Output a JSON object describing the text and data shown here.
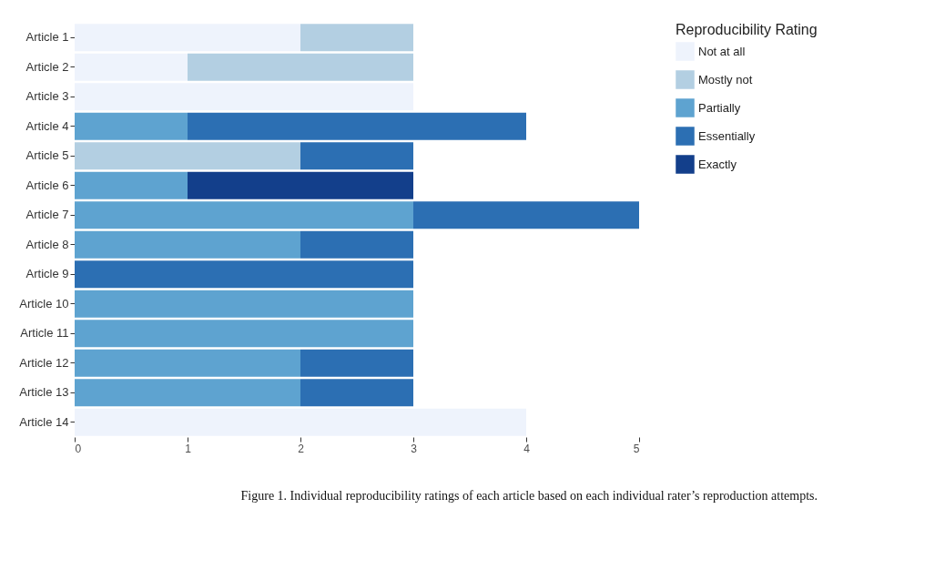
{
  "chart_data": {
    "type": "bar",
    "orientation": "horizontal",
    "stacked": true,
    "categories": [
      "Article 1",
      "Article 2",
      "Article 3",
      "Article 4",
      "Article 5",
      "Article 6",
      "Article 7",
      "Article 8",
      "Article 9",
      "Article 10",
      "Article 11",
      "Article 12",
      "Article 13",
      "Article 14"
    ],
    "series": [
      {
        "name": "Not at all",
        "color": "#eef3fc",
        "values": [
          2,
          1,
          3,
          null,
          null,
          null,
          null,
          null,
          null,
          null,
          null,
          null,
          null,
          4
        ]
      },
      {
        "name": "Mostly not",
        "color": "#b3cfe2",
        "values": [
          1,
          2,
          null,
          null,
          2,
          null,
          null,
          null,
          null,
          null,
          null,
          null,
          null,
          null
        ]
      },
      {
        "name": "Partially",
        "color": "#5ea3d0",
        "values": [
          null,
          null,
          null,
          1,
          null,
          1,
          3,
          2,
          null,
          3,
          3,
          2,
          2,
          null
        ]
      },
      {
        "name": "Essentially",
        "color": "#2c6fb3",
        "values": [
          null,
          null,
          null,
          3,
          1,
          null,
          2,
          1,
          3,
          null,
          null,
          1,
          1,
          null
        ]
      },
      {
        "name": "Exactly",
        "color": "#133f8b",
        "values": [
          null,
          null,
          null,
          null,
          null,
          2,
          null,
          null,
          null,
          null,
          null,
          null,
          null,
          null
        ]
      }
    ],
    "xlim": [
      0,
      5
    ],
    "xticks": [
      0,
      1,
      2,
      3,
      4,
      5
    ],
    "legend": "right",
    "legend_title": "Reproducibility Rating",
    "grid": false,
    "annotations": [
      "Figure 1. Individual reproducibility ratings of each article based on each individual rater’s reproduction attempts."
    ]
  }
}
